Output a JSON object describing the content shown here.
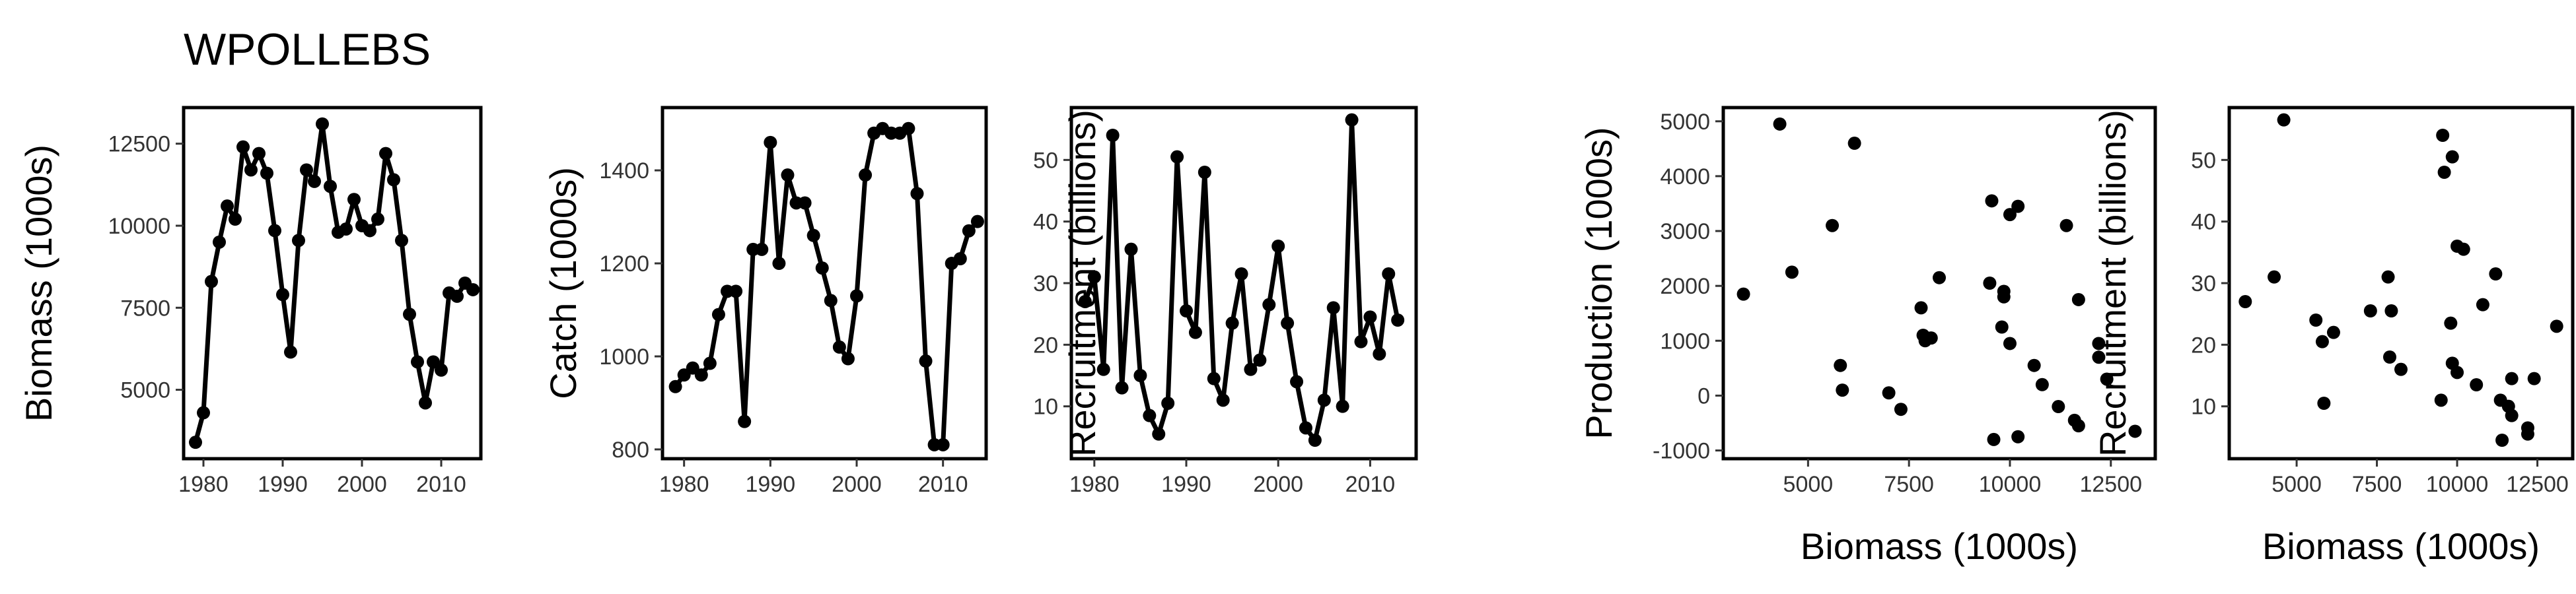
{
  "title": "WPOLLEBS",
  "colors": {
    "ink": "#000000",
    "tick_text": "#333333",
    "background": "#ffffff"
  },
  "chart_data": [
    {
      "type": "line",
      "xlabel": "",
      "ylabel": "Biomass (1000s)",
      "xlim": [
        1977.5,
        2015
      ],
      "ylim": [
        2900,
        13600
      ],
      "xticks": [
        1980,
        1990,
        2000,
        2010
      ],
      "yticks": [
        5000,
        7500,
        10000,
        12500
      ],
      "x": [
        1979,
        1980,
        1981,
        1982,
        1983,
        1984,
        1985,
        1986,
        1987,
        1988,
        1989,
        1990,
        1991,
        1992,
        1993,
        1994,
        1995,
        1996,
        1997,
        1998,
        1999,
        2000,
        2001,
        2002,
        2003,
        2004,
        2005,
        2006,
        2007,
        2008,
        2009,
        2010,
        2011,
        2012,
        2013,
        2014
      ],
      "y": [
        3400,
        4300,
        8300,
        9500,
        10600,
        10200,
        12400,
        11700,
        12200,
        11600,
        9850,
        7900,
        6150,
        9550,
        11700,
        11350,
        13100,
        11200,
        9800,
        9900,
        10800,
        10000,
        9850,
        10200,
        12200,
        11400,
        9550,
        7300,
        5850,
        4600,
        5850,
        5600,
        7950,
        7850,
        8250,
        8050
      ]
    },
    {
      "type": "line",
      "xlabel": "",
      "ylabel": "Catch (1000s)",
      "xlim": [
        1977.5,
        2015
      ],
      "ylim": [
        780,
        1535
      ],
      "xticks": [
        1980,
        1990,
        2000,
        2010
      ],
      "yticks": [
        800,
        1000,
        1200,
        1400
      ],
      "x": [
        1979,
        1980,
        1981,
        1982,
        1983,
        1984,
        1985,
        1986,
        1987,
        1988,
        1989,
        1990,
        1991,
        1992,
        1993,
        1994,
        1995,
        1996,
        1997,
        1998,
        1999,
        2000,
        2001,
        2002,
        2003,
        2004,
        2005,
        2006,
        2007,
        2008,
        2009,
        2010,
        2011,
        2012,
        2013,
        2014
      ],
      "y": [
        935,
        960,
        975,
        960,
        985,
        1090,
        1140,
        1140,
        860,
        1230,
        1230,
        1460,
        1200,
        1390,
        1330,
        1330,
        1260,
        1190,
        1120,
        1020,
        995,
        1130,
        1390,
        1480,
        1490,
        1480,
        1480,
        1490,
        1350,
        990,
        810,
        810,
        1200,
        1210,
        1270,
        1290
      ]
    },
    {
      "type": "line",
      "xlabel": "",
      "ylabel": "Recruitment (billions)",
      "xlim": [
        1977.5,
        2015
      ],
      "ylim": [
        1.5,
        58.5
      ],
      "xticks": [
        1980,
        1990,
        2000,
        2010
      ],
      "yticks": [
        10,
        20,
        30,
        40,
        50
      ],
      "x": [
        1979,
        1980,
        1981,
        1982,
        1983,
        1984,
        1985,
        1986,
        1987,
        1988,
        1989,
        1990,
        1991,
        1992,
        1993,
        1994,
        1995,
        1996,
        1997,
        1998,
        1999,
        2000,
        2001,
        2002,
        2003,
        2004,
        2005,
        2006,
        2007,
        2008,
        2009,
        2010,
        2011,
        2012,
        2013
      ],
      "y": [
        27,
        31,
        16,
        54,
        13,
        35.5,
        15,
        8.5,
        5.5,
        10.5,
        50.5,
        25.5,
        22,
        48,
        14.5,
        11,
        23.5,
        31.5,
        16,
        17.5,
        26.5,
        36,
        23.5,
        14,
        6.5,
        4.5,
        11,
        26,
        10,
        56.5,
        20.5,
        24.5,
        18.5,
        31.5,
        24
      ]
    },
    {
      "type": "scatter",
      "xlabel": "Biomass (1000s)",
      "ylabel": "Production (1000s)",
      "xlim": [
        2900,
        13600
      ],
      "ylim": [
        -1150,
        5250
      ],
      "xticks": [
        5000,
        7500,
        10000,
        12500
      ],
      "yticks": [
        -1000,
        0,
        1000,
        2000,
        3000,
        4000,
        5000
      ],
      "x": [
        3400,
        4300,
        4600,
        5600,
        5800,
        5850,
        6150,
        7000,
        7300,
        7800,
        7850,
        7900,
        7950,
        8050,
        8250,
        9500,
        9550,
        9600,
        9800,
        9850,
        9850,
        10000,
        10000,
        10200,
        10200,
        10600,
        10800,
        11200,
        11400,
        11600,
        11700,
        11700,
        12200,
        12200,
        12400,
        13100
      ],
      "y": [
        1850,
        4950,
        2250,
        3100,
        550,
        100,
        4600,
        50,
        -250,
        1600,
        1100,
        1000,
        1050,
        1050,
        2150,
        2050,
        3550,
        -800,
        1250,
        1900,
        1800,
        950,
        3300,
        3450,
        -750,
        550,
        200,
        -200,
        3100,
        -450,
        1750,
        -550,
        950,
        700,
        300,
        -650
      ]
    },
    {
      "type": "scatter",
      "xlabel": "Biomass (1000s)",
      "ylabel": "Recruitment (billions)",
      "xlim": [
        2900,
        13600
      ],
      "ylim": [
        1.5,
        58.5
      ],
      "xticks": [
        5000,
        7500,
        10000,
        12500
      ],
      "yticks": [
        10,
        20,
        30,
        40,
        50
      ],
      "x": [
        3400,
        4300,
        4600,
        5600,
        5800,
        5850,
        6150,
        7300,
        7850,
        7900,
        7950,
        8250,
        9500,
        9550,
        9600,
        9800,
        9850,
        9850,
        10000,
        10000,
        10200,
        10600,
        10800,
        11200,
        11350,
        11400,
        11600,
        11700,
        11700,
        12200,
        12200,
        12400,
        13100
      ],
      "y": [
        27,
        31,
        56.5,
        24,
        20.5,
        10.5,
        22,
        25.5,
        31,
        18,
        25.5,
        16,
        11,
        54,
        48,
        23.5,
        17,
        50.5,
        15.5,
        36,
        35.5,
        13.5,
        26.5,
        31.5,
        11,
        4.5,
        10,
        14.5,
        8.5,
        5.5,
        6.5,
        14.5,
        23
      ]
    }
  ]
}
